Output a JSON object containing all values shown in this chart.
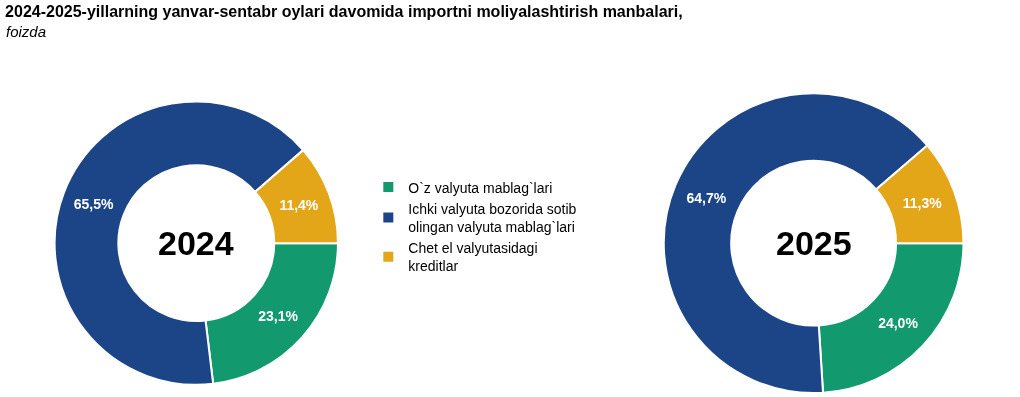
{
  "chart_data": [
    {
      "type": "donut",
      "title": "2024-2025-yillarning yanvar-sentabr oylari davomida importni moliyalashtirish manbalari,",
      "subtitle": "foizda",
      "categories": [
        "O`z valyuta mablag`lari",
        "Ichki valyuta bozorida sotib olingan valyuta mablag`lari",
        "Chet el valyutasidagi kreditlar"
      ],
      "values": [
        23.1,
        65.5,
        11.4
      ],
      "value_labels": [
        "23,1%",
        "65,5%",
        "11,4%"
      ],
      "colors": [
        "#129a6e",
        "#1c4587",
        "#e3a619"
      ],
      "annotations": [
        "2024"
      ],
      "legend": "right"
    },
    {
      "type": "donut",
      "categories": [
        null,
        null,
        null
      ],
      "values": [
        24.0,
        64.7,
        11.3
      ],
      "value_labels": [
        "24,0%",
        "64,7%",
        "11,3%"
      ],
      "colors": [
        "#129a6e",
        "#1c4587",
        "#e3a619"
      ],
      "annotations": [
        "2025"
      ]
    }
  ]
}
